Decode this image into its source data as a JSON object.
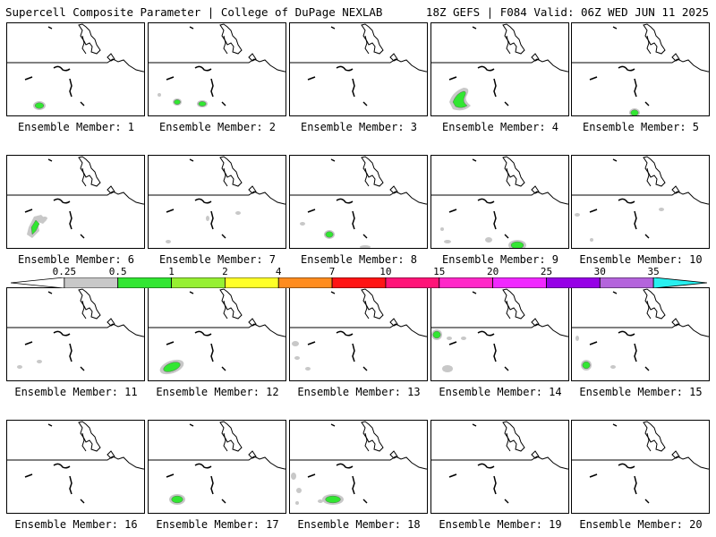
{
  "header": {
    "left": "Supercell Composite Parameter | College of DuPage NEXLAB",
    "right": "18Z GEFS | F084 Valid: 06Z WED JUN 11 2025"
  },
  "caption_prefix": "Ensemble Member:",
  "members": [
    {
      "label": "Ensemble Member: 1"
    },
    {
      "label": "Ensemble Member: 2"
    },
    {
      "label": "Ensemble Member: 3"
    },
    {
      "label": "Ensemble Member: 4"
    },
    {
      "label": "Ensemble Member: 5"
    },
    {
      "label": "Ensemble Member: 6"
    },
    {
      "label": "Ensemble Member: 7"
    },
    {
      "label": "Ensemble Member: 8"
    },
    {
      "label": "Ensemble Member: 9"
    },
    {
      "label": "Ensemble Member: 10"
    },
    {
      "label": "Ensemble Member: 11"
    },
    {
      "label": "Ensemble Member: 12"
    },
    {
      "label": "Ensemble Member: 13"
    },
    {
      "label": "Ensemble Member: 14"
    },
    {
      "label": "Ensemble Member: 15"
    },
    {
      "label": "Ensemble Member: 16"
    },
    {
      "label": "Ensemble Member: 17"
    },
    {
      "label": "Ensemble Member: 18"
    },
    {
      "label": "Ensemble Member: 19"
    },
    {
      "label": "Ensemble Member: 20"
    }
  ],
  "colorbar": {
    "labels": [
      "0.25",
      "0.5",
      "1",
      "2",
      "4",
      "7",
      "10",
      "15",
      "20",
      "25",
      "30",
      "35"
    ],
    "colors": [
      "#ffffff",
      "#c8c8c8",
      "#32e632",
      "#96f032",
      "#ffff28",
      "#ff8c1e",
      "#ff1414",
      "#ff1478",
      "#ff28c8",
      "#f028ff",
      "#9600e6",
      "#b464dc",
      "#28f0f0"
    ]
  }
}
